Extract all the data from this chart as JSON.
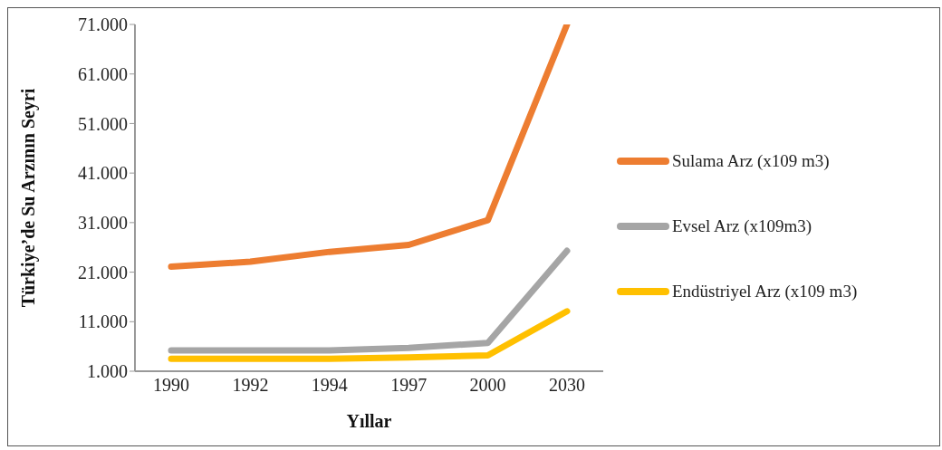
{
  "chart_data": {
    "type": "line",
    "xlabel": "Yıllar",
    "ylabel": "Türkiye’de Su Arzının Seyri",
    "categories": [
      "1990",
      "1992",
      "1994",
      "1997",
      "2000",
      "2030"
    ],
    "series": [
      {
        "name": "Sulama Arz (x109 m3)",
        "color": "#ed7d31",
        "values": [
          22100,
          23100,
          25100,
          26500,
          31500,
          71000
        ]
      },
      {
        "name": "Evsel Arz (x109m3)",
        "color": "#a5a5a5",
        "values": [
          5200,
          5200,
          5200,
          5700,
          6700,
          25300
        ]
      },
      {
        "name": "Endüstriyel Arz (x109 m3)",
        "color": "#ffc000",
        "values": [
          3500,
          3500,
          3500,
          3800,
          4200,
          13100
        ]
      }
    ],
    "ylim": [
      1000,
      71000
    ],
    "yticks": [
      {
        "value": 1000,
        "label": "1.000"
      },
      {
        "value": 11000,
        "label": "11.000"
      },
      {
        "value": 21000,
        "label": "21.000"
      },
      {
        "value": 31000,
        "label": "31.000"
      },
      {
        "value": 41000,
        "label": "41.000"
      },
      {
        "value": 51000,
        "label": "51.000"
      },
      {
        "value": 61000,
        "label": "61.000"
      },
      {
        "value": 71000,
        "label": "71.000"
      }
    ],
    "grid": false,
    "legend": "right",
    "marker": "none",
    "line_style": "solid"
  }
}
